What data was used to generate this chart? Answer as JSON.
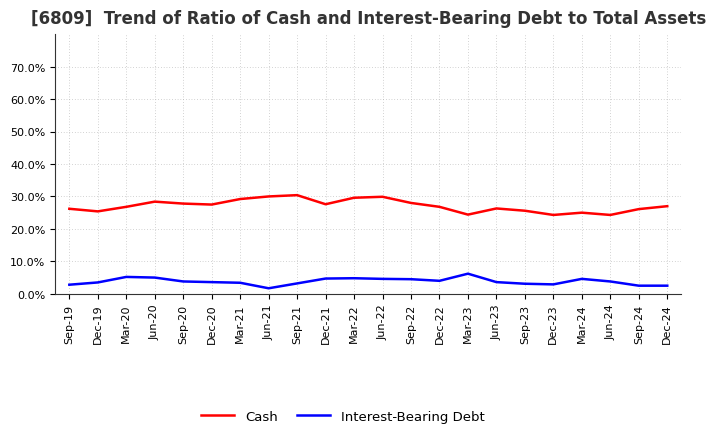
{
  "title": "[6809]  Trend of Ratio of Cash and Interest-Bearing Debt to Total Assets",
  "x_labels": [
    "Sep-19",
    "Dec-19",
    "Mar-20",
    "Jun-20",
    "Sep-20",
    "Dec-20",
    "Mar-21",
    "Jun-21",
    "Sep-21",
    "Dec-21",
    "Mar-22",
    "Jun-22",
    "Sep-22",
    "Dec-22",
    "Mar-23",
    "Jun-23",
    "Sep-23",
    "Dec-23",
    "Mar-24",
    "Jun-24",
    "Sep-24",
    "Dec-24"
  ],
  "cash": [
    0.262,
    0.254,
    0.268,
    0.284,
    0.278,
    0.275,
    0.292,
    0.3,
    0.304,
    0.276,
    0.296,
    0.299,
    0.28,
    0.268,
    0.244,
    0.263,
    0.256,
    0.243,
    0.25,
    0.243,
    0.261,
    0.27
  ],
  "debt": [
    0.028,
    0.035,
    0.052,
    0.05,
    0.038,
    0.036,
    0.034,
    0.017,
    0.032,
    0.047,
    0.048,
    0.046,
    0.045,
    0.04,
    0.062,
    0.036,
    0.031,
    0.029,
    0.046,
    0.038,
    0.025,
    0.025
  ],
  "cash_color": "#ff0000",
  "debt_color": "#0000ff",
  "ylim": [
    0.0,
    0.8
  ],
  "yticks": [
    0.0,
    0.1,
    0.2,
    0.3,
    0.4,
    0.5,
    0.6,
    0.7
  ],
  "background_color": "#ffffff",
  "grid_color": "#aaaaaa",
  "title_fontsize": 12,
  "tick_fontsize": 8,
  "legend_cash": "Cash",
  "legend_debt": "Interest-Bearing Debt",
  "line_width": 1.8
}
